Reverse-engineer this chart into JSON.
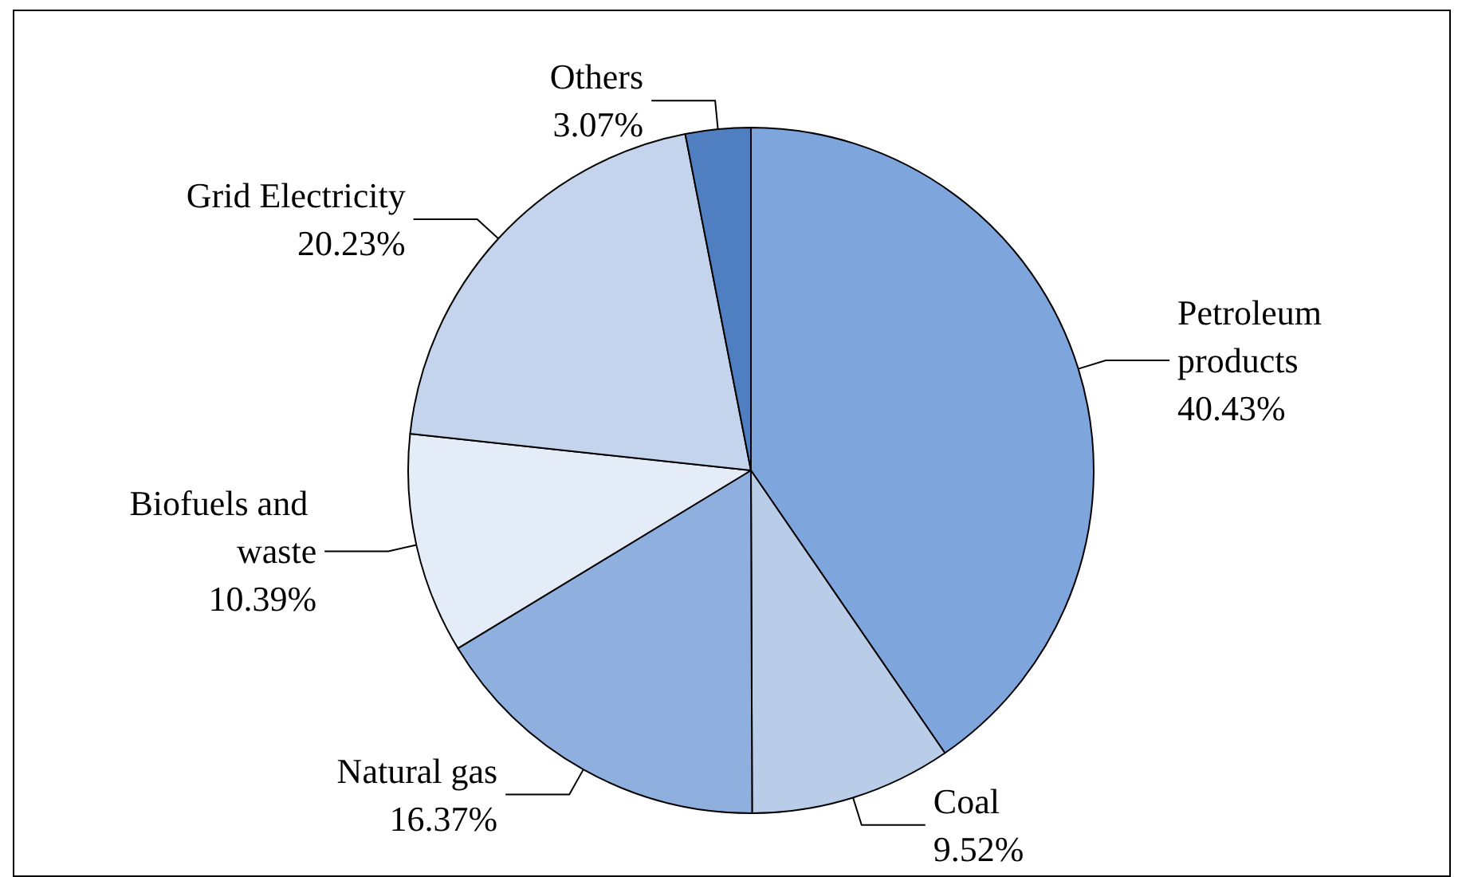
{
  "chart_data": {
    "type": "pie",
    "categories": [
      "Petroleum products",
      "Coal",
      "Natural gas",
      "Biofuels and waste",
      "Grid Electricity",
      "Others"
    ],
    "values": [
      40.43,
      9.52,
      16.37,
      10.39,
      20.23,
      3.07
    ],
    "value_labels": [
      "40.43%",
      "9.52%",
      "16.37%",
      "10.39%",
      "20.23%",
      "3.07%"
    ],
    "colors": [
      "#7ea6dc",
      "#b9cde9",
      "#8fb0de",
      "#e4ecf7",
      "#c3d4ec",
      "#4f7fc0"
    ],
    "legend": false
  }
}
